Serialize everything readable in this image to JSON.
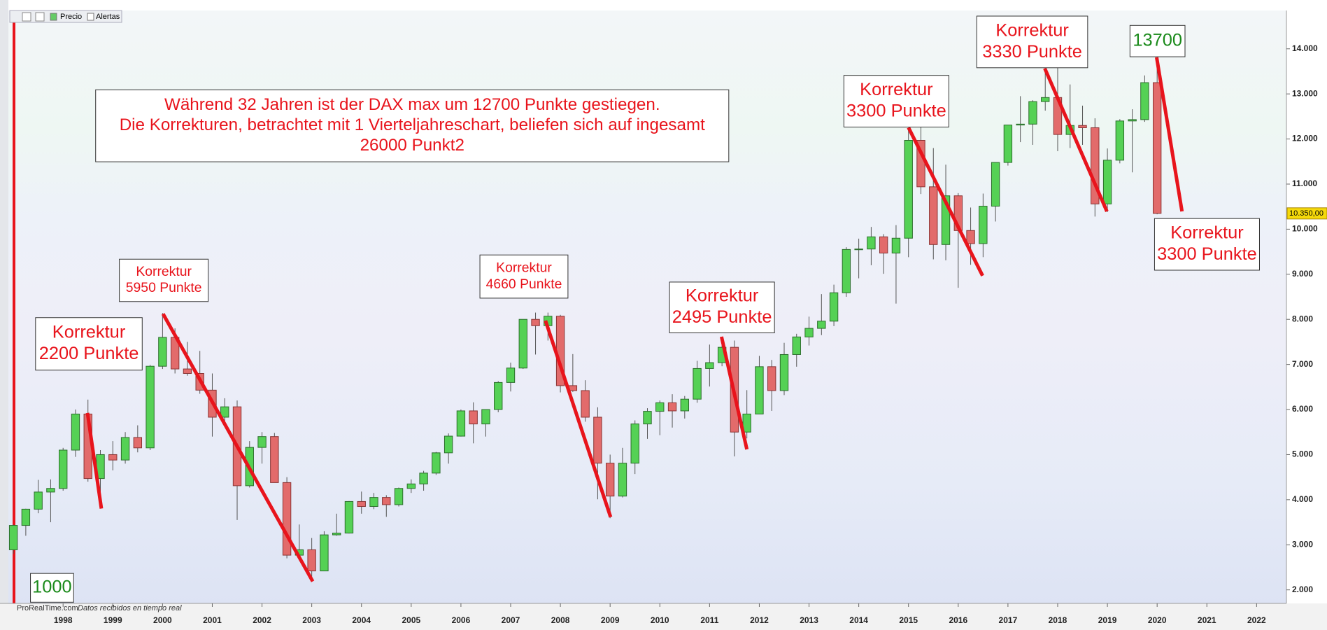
{
  "chart_data": {
    "type": "candlestick",
    "x": [
      1997,
      1997.25,
      1997.5,
      1997.75,
      1998,
      1998.25,
      1998.5,
      1998.75,
      1999,
      1999.25,
      1999.5,
      1999.75,
      2000,
      2000.25,
      2000.5,
      2000.75,
      2001,
      2001.25,
      2001.5,
      2001.75,
      2002,
      2002.25,
      2002.5,
      2002.75,
      2003,
      2003.25,
      2003.5,
      2003.75,
      2004,
      2004.25,
      2004.5,
      2004.75,
      2005,
      2005.25,
      2005.5,
      2005.75,
      2006,
      2006.25,
      2006.5,
      2006.75,
      2007,
      2007.25,
      2007.5,
      2007.75,
      2008,
      2008.25,
      2008.5,
      2008.75,
      2009,
      2009.25,
      2009.5,
      2009.75,
      2010,
      2010.25,
      2010.5,
      2010.75,
      2011,
      2011.25,
      2011.5,
      2011.75,
      2012,
      2012.25,
      2012.5,
      2012.75,
      2013,
      2013.25,
      2013.5,
      2013.75,
      2014,
      2014.25,
      2014.5,
      2014.75,
      2015,
      2015.25,
      2015.5,
      2015.75,
      2016,
      2016.25,
      2016.5,
      2016.75,
      2017,
      2017.25,
      2017.5,
      2017.75,
      2018,
      2018.25,
      2018.5,
      2018.75,
      2019,
      2019.25,
      2019.5,
      2019.75,
      2020
    ],
    "open": [
      2889,
      3430,
      3790,
      4170,
      4250,
      5100,
      5900,
      4470,
      5000,
      4880,
      5380,
      5150,
      6960,
      7600,
      6900,
      6800,
      6430,
      5830,
      6060,
      4310,
      5160,
      5400,
      4380,
      2770,
      2890,
      2420,
      3220,
      3260,
      3960,
      3850,
      4050,
      3890,
      4250,
      4350,
      4590,
      5040,
      5410,
      5970,
      5680,
      6000,
      6600,
      6920,
      8000,
      7860,
      8070,
      6530,
      6420,
      5830,
      4810,
      4080,
      4810,
      5680,
      5960,
      6150,
      5970,
      6230,
      6910,
      7040,
      7380,
      5500,
      5900,
      6950,
      6420,
      7220,
      7610,
      7800,
      7960,
      8590,
      9550,
      9560,
      9830,
      9470,
      9800,
      11970,
      10940,
      9660,
      10740,
      9970,
      9680,
      10510,
      11480,
      12310,
      12330,
      12830,
      12920,
      12100,
      12300,
      12250,
      10560,
      11530,
      12400,
      12430,
      13250
    ],
    "high": [
      3450,
      3800,
      4440,
      4450,
      5150,
      6000,
      6220,
      5100,
      5300,
      5500,
      5650,
      6990,
      8140,
      7800,
      7500,
      7300,
      6800,
      6250,
      6200,
      5300,
      5500,
      5480,
      4500,
      3450,
      3150,
      3300,
      3690,
      3970,
      4180,
      4150,
      4100,
      4270,
      4450,
      4640,
      5060,
      5470,
      6000,
      6160,
      6000,
      6630,
      7040,
      8000,
      8150,
      8150,
      8100,
      7230,
      6650,
      6050,
      5000,
      5150,
      5760,
      6030,
      6200,
      6340,
      6300,
      7080,
      7440,
      7600,
      7530,
      6430,
      7190,
      7100,
      7480,
      7680,
      8060,
      8560,
      8770,
      9600,
      9790,
      10050,
      9890,
      10090,
      12220,
      12390,
      11800,
      11430,
      10800,
      10480,
      10790,
      11480,
      12310,
      12950,
      12860,
      13530,
      13600,
      13210,
      12740,
      12460,
      11790,
      12440,
      12660,
      13410,
      13800
    ],
    "low": [
      2800,
      3200,
      3700,
      3500,
      4200,
      4950,
      4400,
      3830,
      4650,
      4800,
      5050,
      5100,
      6900,
      6800,
      6750,
      6350,
      5400,
      5700,
      3550,
      4270,
      4800,
      4380,
      2700,
      2650,
      2190,
      2420,
      3200,
      3250,
      3690,
      3790,
      3620,
      3850,
      4150,
      4200,
      4550,
      4800,
      5400,
      5250,
      5400,
      5940,
      6400,
      6900,
      7220,
      7530,
      6380,
      6390,
      5730,
      4010,
      3590,
      4050,
      4570,
      5350,
      5430,
      5600,
      5800,
      6150,
      6510,
      6960,
      4960,
      5360,
      5900,
      5970,
      6320,
      6950,
      7420,
      7650,
      7850,
      8500,
      8910,
      9200,
      9010,
      8350,
      9380,
      10780,
      9330,
      9310,
      8700,
      9210,
      9380,
      10170,
      11410,
      11930,
      11870,
      12630,
      11730,
      11800,
      11870,
      10280,
      10380,
      11460,
      11260,
      12380,
      10330
    ],
    "close": [
      3430,
      3790,
      4170,
      4250,
      5100,
      5900,
      4470,
      5000,
      4880,
      5380,
      5150,
      6960,
      7600,
      6900,
      6800,
      6430,
      5830,
      6060,
      4310,
      5160,
      5400,
      4380,
      2770,
      2890,
      2420,
      3220,
      3260,
      3960,
      3850,
      4050,
      3890,
      4250,
      4350,
      4590,
      5040,
      5410,
      5970,
      5680,
      6000,
      6600,
      6920,
      8000,
      7860,
      8070,
      6530,
      6420,
      5830,
      4810,
      4080,
      4810,
      5680,
      5960,
      6150,
      5970,
      6230,
      6910,
      7040,
      7380,
      5500,
      5900,
      6950,
      6420,
      7220,
      7610,
      7800,
      7960,
      8590,
      9550,
      9560,
      9830,
      9470,
      9800,
      11970,
      10940,
      9660,
      10740,
      9970,
      9680,
      10510,
      11480,
      12310,
      12330,
      12830,
      12920,
      12100,
      12300,
      12250,
      10560,
      11530,
      12400,
      12430,
      13250,
      10350
    ],
    "up_color": "#55d155",
    "down_color": "#e26b6b",
    "xlim": [
      1996.9,
      2022.6
    ],
    "xticks": [
      1998,
      1999,
      2000,
      2001,
      2002,
      2003,
      2004,
      2005,
      2006,
      2007,
      2008,
      2009,
      2010,
      2011,
      2012,
      2013,
      2014,
      2015,
      2016,
      2017,
      2018,
      2019,
      2020,
      2021,
      2022
    ],
    "ylim": [
      1700,
      14850
    ],
    "yticks": [
      {
        "value": 2000,
        "label": "2.000"
      },
      {
        "value": 3000,
        "label": "3.000"
      },
      {
        "value": 4000,
        "label": "4.000"
      },
      {
        "value": 5000,
        "label": "5.000"
      },
      {
        "value": 6000,
        "label": "6.000"
      },
      {
        "value": 7000,
        "label": "7.000"
      },
      {
        "value": 8000,
        "label": "8.000"
      },
      {
        "value": 9000,
        "label": "9.000"
      },
      {
        "value": 10000,
        "label": "10.000"
      },
      {
        "value": 11000,
        "label": "11.000"
      },
      {
        "value": 12000,
        "label": "12.000"
      },
      {
        "value": 13000,
        "label": "13.000"
      },
      {
        "value": 14000,
        "label": "14.000"
      }
    ],
    "price_label": {
      "value": 10350,
      "label": "10.350,00"
    },
    "line_color": "#e8141c",
    "correction_lines": [
      {
        "x": [
          1998.49,
          1998.77
        ],
        "y": [
          5925,
          3803
        ]
      },
      {
        "x": [
          2000.01,
          2003.02
        ],
        "y": [
          8122,
          2188
        ]
      },
      {
        "x": [
          2007.7,
          2009.01
        ],
        "y": [
          7972,
          3615
        ]
      },
      {
        "x": [
          2011.24,
          2011.75
        ],
        "y": [
          7615,
          5117
        ]
      },
      {
        "x": [
          2015.0,
          2016.49
        ],
        "y": [
          12254,
          8967
        ]
      },
      {
        "x": [
          2017.74,
          2018.99
        ],
        "y": [
          13568,
          10394
        ]
      },
      {
        "x": [
          2019.99,
          2020.5
        ],
        "y": [
          13812,
          10394
        ]
      }
    ],
    "annotations": [
      {
        "lines": [
          "Während 32 Jahren ist der DAX max um 12700 Punkte gestiegen.",
          "Die Korrekturen, betrachtet mit 1 Vierteljahreschart, beliefen sich auf ingesamt",
          "26000 Punkt2"
        ],
        "color": "#e8141c"
      },
      {
        "lines": [
          "Korrektur",
          "2200 Punkte"
        ],
        "color": "#e8141c"
      },
      {
        "lines": [
          "Korrektur",
          "5950 Punkte"
        ],
        "color": "#e8141c"
      },
      {
        "lines": [
          "Korrektur",
          "4660 Punkte"
        ],
        "color": "#e8141c"
      },
      {
        "lines": [
          "Korrektur",
          "2495 Punkte"
        ],
        "color": "#e8141c"
      },
      {
        "lines": [
          "Korrektur",
          "3300 Punkte"
        ],
        "color": "#e8141c"
      },
      {
        "lines": [
          "Korrektur",
          "3330 Punkte"
        ],
        "color": "#e8141c"
      },
      {
        "lines": [
          "13700"
        ],
        "color": "#1a8a1a"
      },
      {
        "lines": [
          "Korrektur",
          "3300 Punkte"
        ],
        "color": "#e8141c"
      },
      {
        "lines": [
          "1000"
        ],
        "color": "#1a8a1a"
      }
    ]
  },
  "toolbar": {
    "items": [
      "Precio",
      "Alertas"
    ]
  },
  "footer": {
    "source": "ProRealTime.com",
    "note": "Datos recibidos en tiempo real"
  }
}
